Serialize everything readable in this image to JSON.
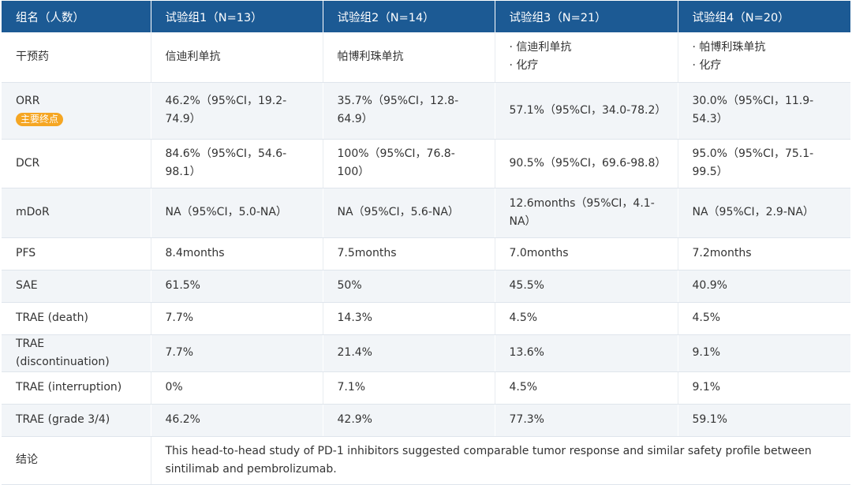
{
  "header": {
    "col0": "组名（人数）",
    "col1": "试验组1（N=13）",
    "col2": "试验组2（N=14）",
    "col3": "试验组3（N=21）",
    "col4": "试验组4（N=20）"
  },
  "rows": {
    "intervention": {
      "label": "干预药",
      "g1": "信迪利单抗",
      "g2": "帕博利珠单抗",
      "g3": [
        "信迪利单抗",
        "化疗"
      ],
      "g4": [
        "帕博利珠单抗",
        "化疗"
      ]
    },
    "orr": {
      "label": "ORR",
      "badge": "主要终点",
      "g1": "46.2%（95%CI，19.2-74.9）",
      "g2": "35.7%（95%CI，12.8-64.9）",
      "g3": "57.1%（95%CI，34.0-78.2）",
      "g4": "30.0%（95%CI，11.9-54.3）"
    },
    "dcr": {
      "label": "DCR",
      "g1": "84.6%（95%CI，54.6-98.1）",
      "g2": "100%（95%CI，76.8-100）",
      "g3": "90.5%（95%CI，69.6-98.8）",
      "g4": "95.0%（95%CI，75.1-99.5）"
    },
    "mdor": {
      "label": "mDoR",
      "g1": "NA（95%CI，5.0-NA）",
      "g2": "NA（95%CI，5.6-NA）",
      "g3": "12.6months（95%CI，4.1-NA）",
      "g4": "NA（95%CI，2.9-NA）"
    },
    "pfs": {
      "label": "PFS",
      "g1": "8.4months",
      "g2": "7.5months",
      "g3": "7.0months",
      "g4": "7.2months"
    },
    "sae": {
      "label": "SAE",
      "g1": "61.5%",
      "g2": "50%",
      "g3": "45.5%",
      "g4": "40.9%"
    },
    "trae_death": {
      "label": "TRAE (death)",
      "g1": "7.7%",
      "g2": "14.3%",
      "g3": "4.5%",
      "g4": "4.5%"
    },
    "trae_discontinuation": {
      "label": "TRAE (discontinuation)",
      "g1": "7.7%",
      "g2": "21.4%",
      "g3": "13.6%",
      "g4": "9.1%"
    },
    "trae_interruption": {
      "label": "TRAE (interruption)",
      "g1": "0%",
      "g2": "7.1%",
      "g3": "4.5%",
      "g4": "9.1%"
    },
    "trae_grade34": {
      "label": "TRAE (grade 3/4)",
      "g1": "46.2%",
      "g2": "42.9%",
      "g3": "77.3%",
      "g4": "59.1%"
    },
    "conclusion": {
      "label": "结论",
      "text": "This head-to-head study of PD-1 inhibitors suggested comparable tumor response and similar safety profile between sintilimab and pembrolizumab."
    }
  }
}
